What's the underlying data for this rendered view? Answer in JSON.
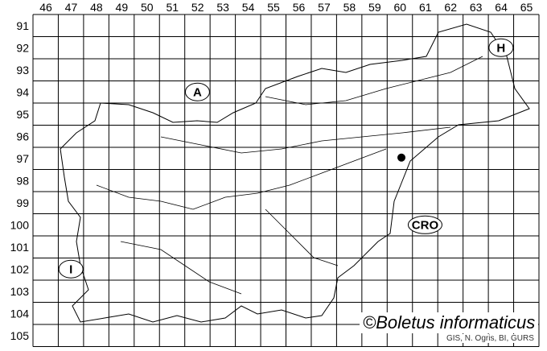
{
  "grid": {
    "columns": [
      "46",
      "47",
      "48",
      "49",
      "50",
      "51",
      "52",
      "53",
      "54",
      "55",
      "56",
      "57",
      "58",
      "59",
      "60",
      "61",
      "62",
      "63",
      "64",
      "65"
    ],
    "rows": [
      "91",
      "92",
      "93",
      "94",
      "95",
      "96",
      "97",
      "98",
      "99",
      "100",
      "101",
      "102",
      "103",
      "104",
      "105"
    ]
  },
  "neighbors": [
    {
      "label": "A",
      "col": "52",
      "row": "94"
    },
    {
      "label": "H",
      "col": "64",
      "row": "92"
    },
    {
      "label": "CRO",
      "col": "61",
      "row": "100"
    },
    {
      "label": "I",
      "col": "47",
      "row": "102"
    }
  ],
  "records": [
    {
      "col": "60",
      "row": "97"
    }
  ],
  "colors": {
    "lines": "#000000",
    "record": "#000000"
  },
  "copyright": "©Boletus informaticus",
  "source": "GIS, N. Ogris, BI, GURS"
}
